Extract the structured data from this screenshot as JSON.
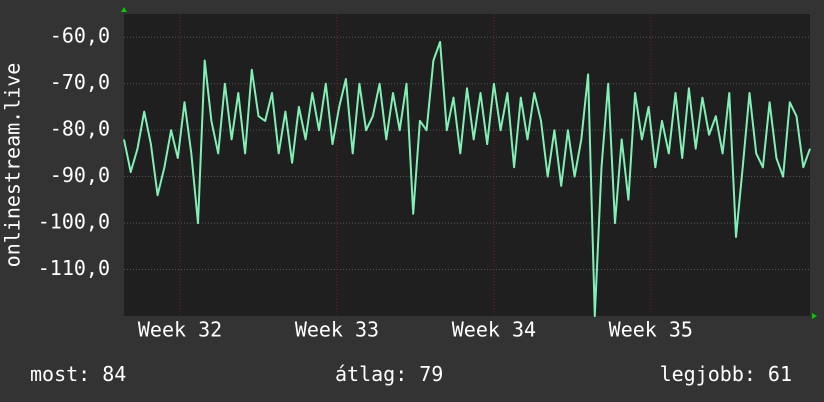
{
  "chart_data": {
    "type": "line",
    "y_label": "onlinestream.live",
    "x": [
      0.0,
      0.3,
      0.6,
      0.9,
      1.2,
      1.5,
      1.8,
      2.1,
      2.4,
      2.7,
      3.0,
      3.3,
      3.6,
      3.9,
      4.2,
      4.5,
      4.8,
      5.1,
      5.4,
      5.7,
      6.0,
      6.3,
      6.6,
      6.9,
      7.2,
      7.5,
      7.8,
      8.1,
      8.4,
      8.7,
      9.0,
      9.3,
      9.6,
      9.9,
      10.2,
      10.5,
      10.8,
      11.1,
      11.4,
      11.7,
      12.0,
      12.3,
      12.6,
      12.9,
      13.2,
      13.5,
      13.8,
      14.1,
      14.4,
      14.7,
      15.0,
      15.3,
      15.6,
      15.9,
      16.2,
      16.5,
      16.8,
      17.1,
      17.4,
      17.7,
      18.0,
      18.3,
      18.6,
      18.9,
      19.2,
      19.5,
      19.8,
      20.1,
      20.4,
      20.7,
      21.0,
      21.3,
      21.6,
      21.9,
      22.2,
      22.5,
      22.8,
      23.1,
      23.4,
      23.7,
      24.0,
      24.3,
      24.6,
      24.9,
      25.2,
      25.5,
      25.8,
      26.1,
      26.4,
      26.7,
      27.0,
      27.3,
      27.6,
      27.9,
      28.2,
      28.5,
      28.8,
      29.1,
      29.4,
      29.7,
      30.0,
      30.3,
      30.6
    ],
    "series": [
      {
        "color": "#80f0b4",
        "values": [
          -82,
          -89,
          -84,
          -76,
          -83,
          -94,
          -88,
          -80,
          -86,
          -74,
          -85,
          -100,
          -65,
          -78,
          -85,
          -70,
          -82,
          -72,
          -85,
          -67,
          -77,
          -78,
          -72,
          -85,
          -76,
          -87,
          -75,
          -82,
          -72,
          -80,
          -70,
          -83,
          -75,
          -69,
          -85,
          -70,
          -80,
          -77,
          -70,
          -82,
          -72,
          -80,
          -70,
          -98,
          -78,
          -80,
          -65,
          -61,
          -80,
          -73,
          -85,
          -71,
          -82,
          -72,
          -83,
          -70,
          -80,
          -72,
          -88,
          -73,
          -82,
          -72,
          -78,
          -90,
          -80,
          -92,
          -80,
          -90,
          -82,
          -68,
          -120,
          -88,
          -70,
          -100,
          -82,
          -95,
          -72,
          -82,
          -75,
          -88,
          -78,
          -85,
          -72,
          -86,
          -71,
          -84,
          -73,
          -81,
          -77,
          -85,
          -72,
          -103,
          -88,
          -72,
          -85,
          -88,
          -74,
          -86,
          -90,
          -74,
          -77,
          -88,
          -84
        ]
      }
    ],
    "xlim": [
      0,
      30.6
    ],
    "xticks": [
      {
        "value": 2.5,
        "label": "Week 32"
      },
      {
        "value": 9.5,
        "label": "Week 33"
      },
      {
        "value": 16.5,
        "label": "Week 34"
      },
      {
        "value": 23.5,
        "label": "Week 35"
      }
    ],
    "ylim": [
      -120,
      -55
    ],
    "yticks": [
      {
        "value": -110,
        "label": "-110,0"
      },
      {
        "value": -100,
        "label": "-100,0"
      },
      {
        "value": -90,
        "label": "-90,0"
      },
      {
        "value": -80,
        "label": "-80,0"
      },
      {
        "value": -70,
        "label": "-70,0"
      },
      {
        "value": -60,
        "label": "-60,0"
      }
    ],
    "grid": true,
    "stats": [
      {
        "label": "most:",
        "value": 84
      },
      {
        "label": "átlag:",
        "value": 79
      },
      {
        "label": "legjobb:",
        "value": 61
      }
    ]
  }
}
